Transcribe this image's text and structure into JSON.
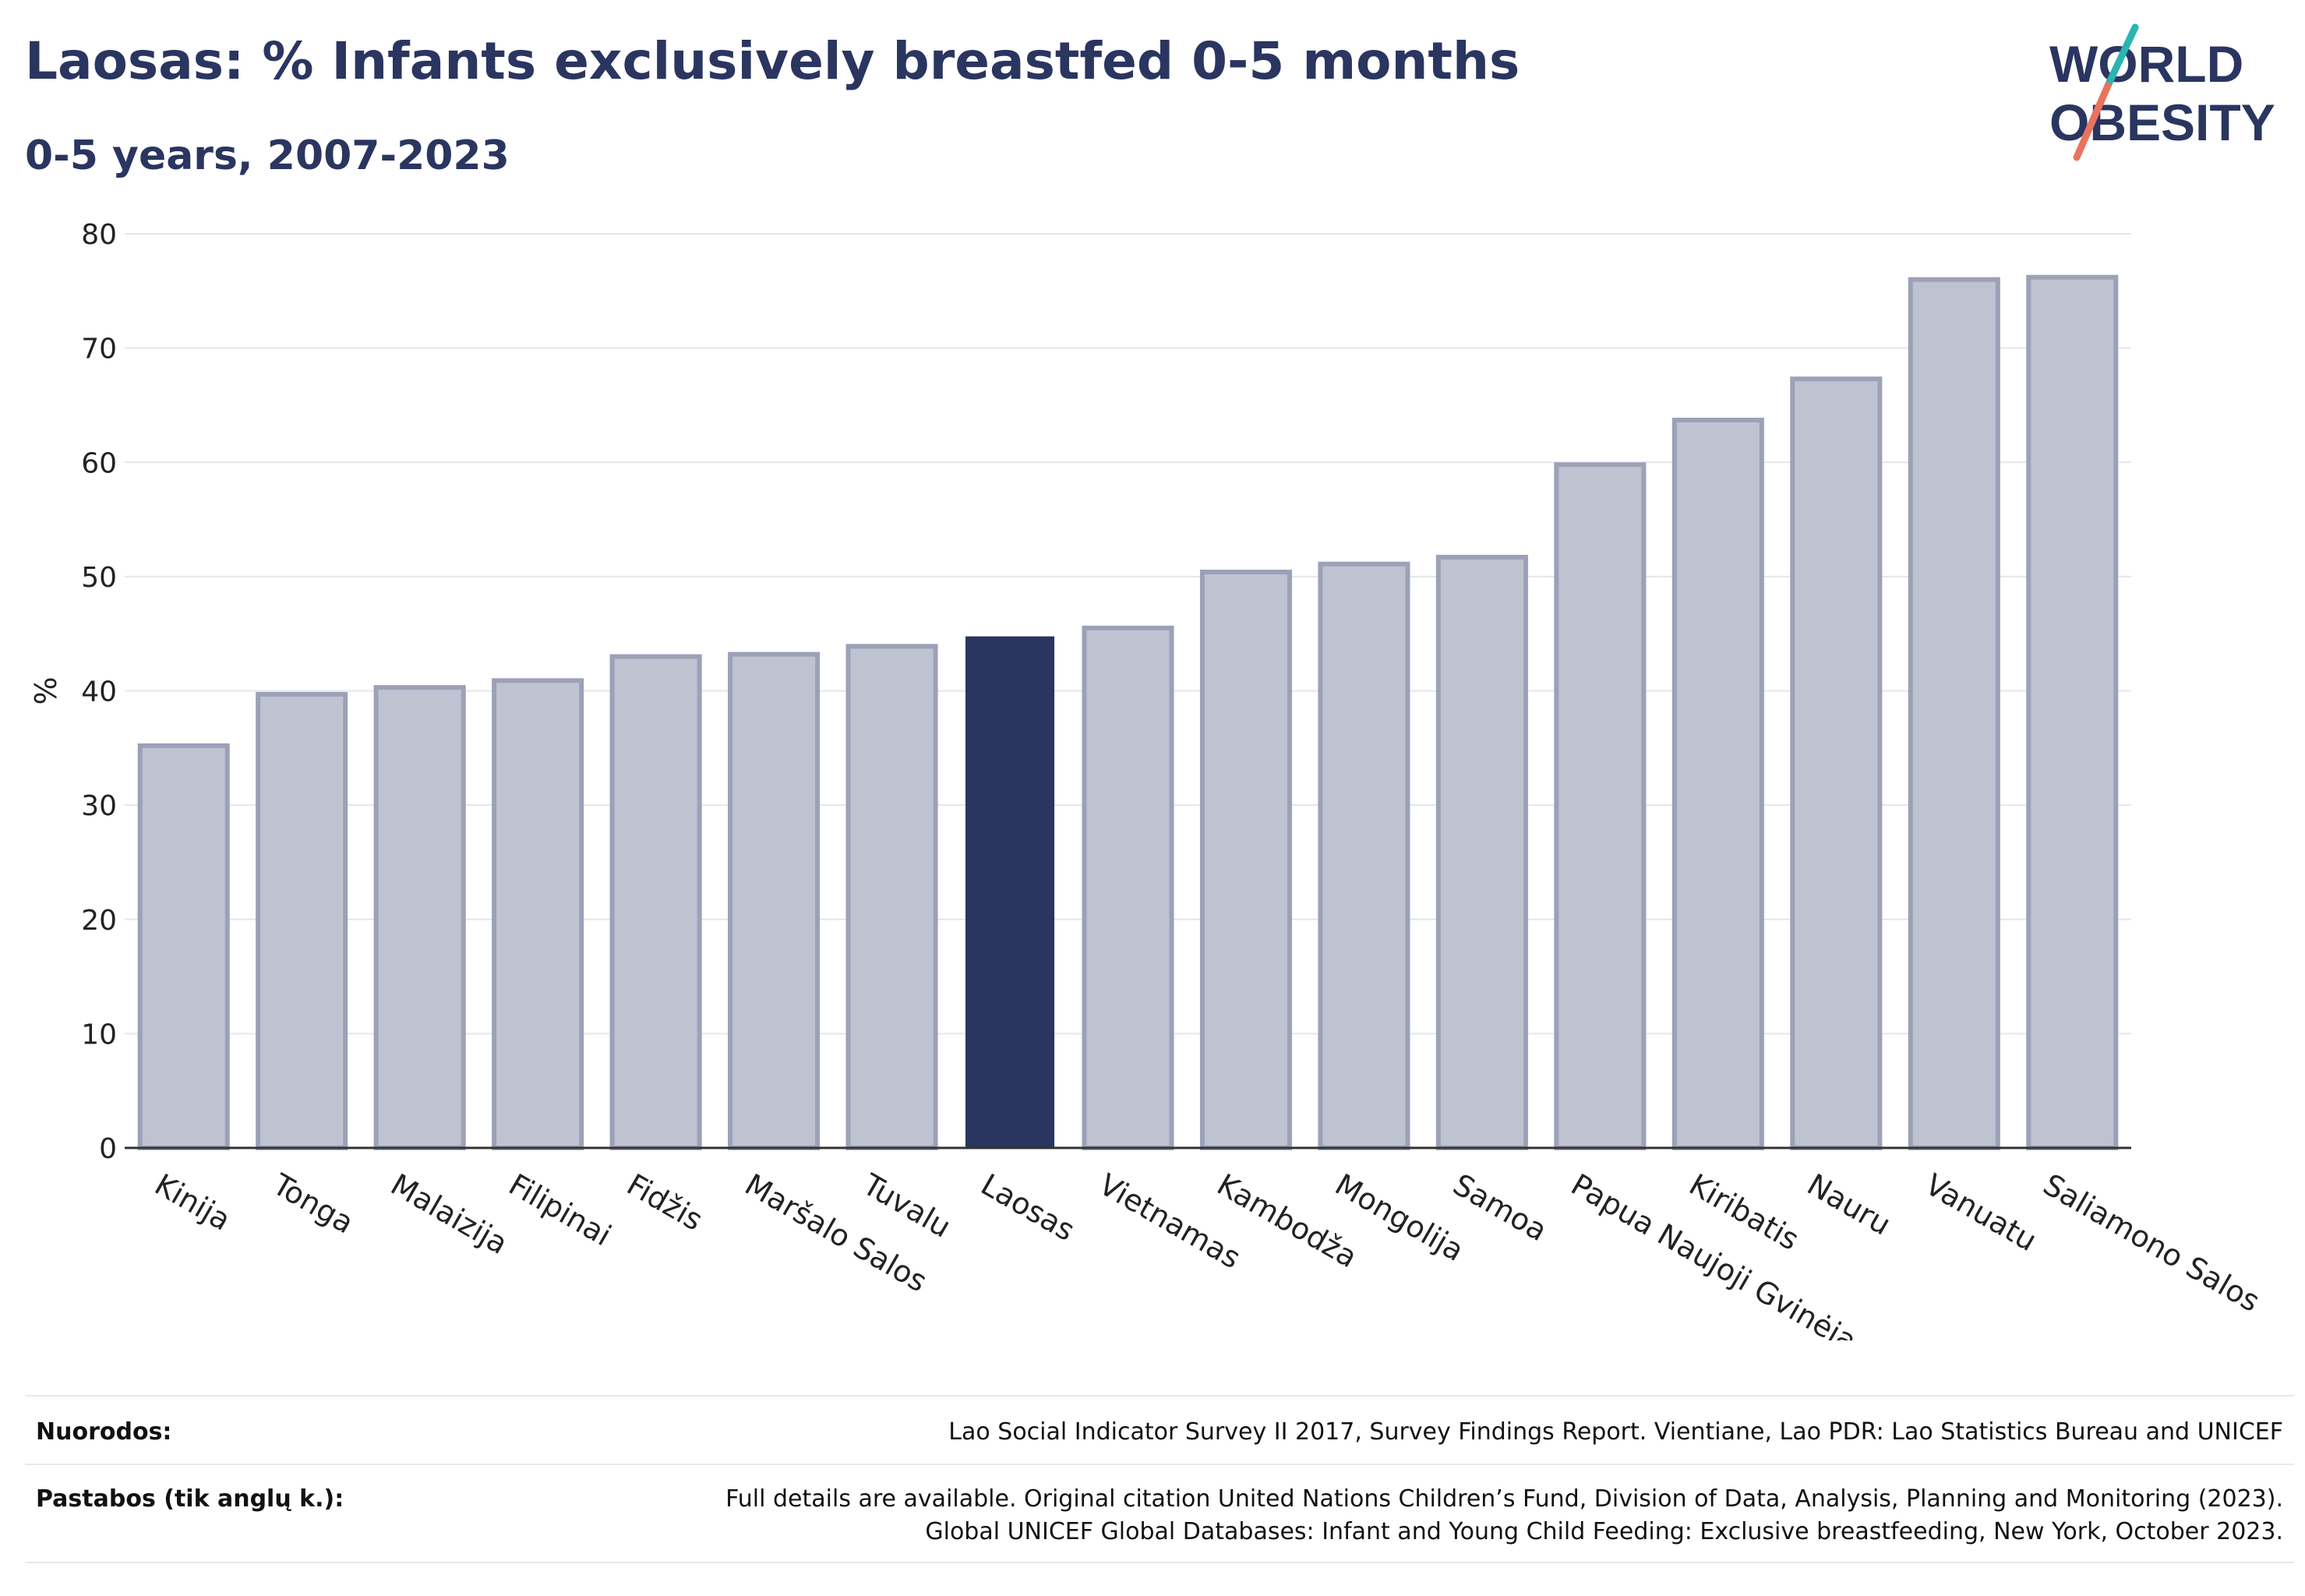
{
  "header": {
    "title": "Laosas: % Infants exclusively breastfed 0-5 months",
    "subtitle": "0-5 years, 2007-2023"
  },
  "logo": {
    "line1": "WORLD",
    "line2": "OBESITY",
    "accent1": "#2bb5b0",
    "accent2": "#e8735f"
  },
  "colors": {
    "bar": "#bfc2d0",
    "bar_border": "#9ca1b8",
    "highlight": "#2a3560",
    "grid": "#e5e6ec",
    "axis": "#333333"
  },
  "chart_data": {
    "type": "bar",
    "ylabel": "%",
    "ylim": [
      0,
      80
    ],
    "yticks": [
      0,
      10,
      20,
      30,
      40,
      50,
      60,
      70,
      80
    ],
    "grid": true,
    "categories": [
      "Kinija",
      "Tonga",
      "Malaizija",
      "Filipinai",
      "Fidžis",
      "Maršalo Salos",
      "Tuvalu",
      "Laosas",
      "Vietnamas",
      "Kambodža",
      "Mongolija",
      "Samoa",
      "Papua Naujoji Gvinėja",
      "Kiribatis",
      "Nauru",
      "Vanuatu",
      "Saliamono Salos"
    ],
    "values": [
      35.2,
      39.7,
      40.3,
      40.9,
      43.0,
      43.2,
      43.9,
      44.7,
      45.5,
      50.4,
      51.1,
      51.7,
      59.8,
      63.7,
      67.3,
      76.0,
      76.2
    ],
    "highlight": "Laosas"
  },
  "footer": {
    "sources_label": "Nuorodos:",
    "sources_text": "Lao Social Indicator Survey II 2017, Survey Findings Report. Vientiane, Lao PDR: Lao Statistics Bureau and UNICEF",
    "notes_label": "Pastabos (tik anglų k.):",
    "notes_line1": "Full details are available. Original citation United Nations Children’s Fund, Division of Data, Analysis, Planning and Monitoring (2023).",
    "notes_line2": "Global UNICEF Global Databases: Infant and Young Child Feeding: Exclusive breastfeeding, New York, October 2023."
  }
}
